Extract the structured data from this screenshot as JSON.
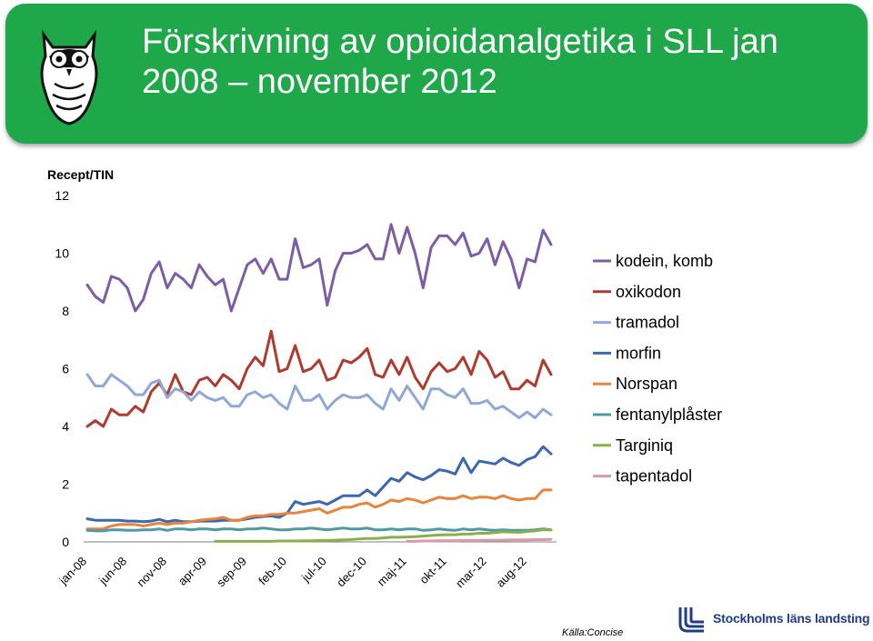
{
  "slide": {
    "title": "Förskrivning av opioidanalgetika i SLL jan 2008 – november 2012",
    "title_line1": "Förskrivning av opioidanalgetika i SLL jan",
    "title_line2": "2008 – november 2012",
    "source": "Källa:Concise",
    "org_logo_text": "Stockholms läns landsting",
    "banner_color": "#1fa84a"
  },
  "chart_data": {
    "type": "line",
    "title": "",
    "ylabel": "Recept/TIN",
    "xlabel": "",
    "ylim": [
      0,
      12
    ],
    "yticks": [
      0,
      2,
      4,
      6,
      8,
      10,
      12
    ],
    "grid": false,
    "legend_position": "right",
    "x_start": "jan-08",
    "x_tick_labels": [
      "jan-08",
      "jun-08",
      "nov-08",
      "apr-09",
      "sep-09",
      "feb-10",
      "jul-10",
      "dec-10",
      "maj-11",
      "okt-11",
      "mar-12",
      "aug-12"
    ],
    "series": [
      {
        "name": "kodein, komb",
        "color": "#7b5ea7",
        "values": [
          8.9,
          8.5,
          8.3,
          9.2,
          9.1,
          8.8,
          8.0,
          8.4,
          9.3,
          9.7,
          8.8,
          9.3,
          9.1,
          8.8,
          9.6,
          9.2,
          8.9,
          9.1,
          8.0,
          8.8,
          9.6,
          9.8,
          9.3,
          9.8,
          9.1,
          9.1,
          10.5,
          9.5,
          9.6,
          9.8,
          8.2,
          9.4,
          10.0,
          10.0,
          10.1,
          10.3,
          9.8,
          9.8,
          11.0,
          10.0,
          10.9,
          10.0,
          8.8,
          10.2,
          10.6,
          10.6,
          10.3,
          10.7,
          9.9,
          10.0,
          10.5,
          9.6,
          10.4,
          9.8,
          8.8,
          9.8,
          9.7,
          10.8,
          10.3
        ]
      },
      {
        "name": "oxikodon",
        "color": "#b03a2e",
        "values": [
          4.0,
          4.2,
          4.0,
          4.6,
          4.4,
          4.4,
          4.7,
          4.5,
          5.2,
          5.5,
          5.1,
          5.8,
          5.2,
          5.1,
          5.6,
          5.7,
          5.4,
          5.8,
          5.6,
          5.3,
          6.0,
          6.4,
          6.1,
          7.3,
          5.9,
          6.0,
          6.8,
          5.9,
          6.0,
          6.3,
          5.6,
          5.7,
          6.3,
          6.2,
          6.4,
          6.7,
          5.8,
          5.7,
          6.3,
          5.8,
          6.4,
          5.7,
          5.3,
          5.9,
          6.2,
          5.9,
          6.0,
          6.4,
          5.8,
          6.6,
          6.3,
          5.7,
          5.9,
          5.3,
          5.3,
          5.6,
          5.4,
          6.3,
          5.8
        ]
      },
      {
        "name": "tramadol",
        "color": "#8fa8d8",
        "values": [
          5.8,
          5.4,
          5.4,
          5.8,
          5.6,
          5.4,
          5.1,
          5.1,
          5.5,
          5.6,
          5.0,
          5.3,
          5.2,
          4.9,
          5.2,
          5.0,
          4.9,
          5.0,
          4.7,
          4.7,
          5.1,
          5.2,
          5.0,
          5.1,
          4.8,
          4.6,
          5.4,
          4.9,
          4.9,
          5.1,
          4.6,
          4.9,
          5.1,
          5.0,
          5.0,
          5.1,
          4.8,
          4.6,
          5.3,
          4.9,
          5.4,
          5.0,
          4.6,
          5.3,
          5.3,
          5.1,
          5.0,
          5.3,
          4.8,
          4.8,
          4.9,
          4.6,
          4.7,
          4.5,
          4.3,
          4.5,
          4.3,
          4.6,
          4.4
        ]
      },
      {
        "name": "morfin",
        "color": "#3b68b0",
        "values": [
          0.8,
          0.75,
          0.75,
          0.75,
          0.75,
          0.72,
          0.72,
          0.7,
          0.72,
          0.78,
          0.7,
          0.75,
          0.7,
          0.7,
          0.72,
          0.72,
          0.72,
          0.75,
          0.75,
          0.75,
          0.8,
          0.85,
          0.88,
          0.9,
          0.85,
          1.0,
          1.4,
          1.3,
          1.35,
          1.4,
          1.3,
          1.45,
          1.6,
          1.6,
          1.6,
          1.8,
          1.6,
          1.9,
          2.2,
          2.1,
          2.4,
          2.25,
          2.15,
          2.3,
          2.5,
          2.45,
          2.35,
          2.9,
          2.4,
          2.8,
          2.75,
          2.7,
          2.9,
          2.75,
          2.65,
          2.85,
          2.95,
          3.3,
          3.05
        ]
      },
      {
        "name": "Norspan",
        "color": "#e8843c",
        "values": [
          0.45,
          0.45,
          0.45,
          0.55,
          0.6,
          0.6,
          0.6,
          0.55,
          0.6,
          0.65,
          0.6,
          0.65,
          0.65,
          0.7,
          0.75,
          0.78,
          0.8,
          0.85,
          0.75,
          0.75,
          0.85,
          0.9,
          0.9,
          0.95,
          0.95,
          1.0,
          1.0,
          1.05,
          1.1,
          1.15,
          1.0,
          1.1,
          1.2,
          1.2,
          1.3,
          1.35,
          1.2,
          1.3,
          1.45,
          1.4,
          1.5,
          1.45,
          1.35,
          1.45,
          1.55,
          1.5,
          1.5,
          1.6,
          1.5,
          1.55,
          1.55,
          1.5,
          1.6,
          1.5,
          1.45,
          1.5,
          1.5,
          1.8,
          1.8
        ]
      },
      {
        "name": "fentanylplåster",
        "color": "#4f98a8",
        "values": [
          0.4,
          0.38,
          0.38,
          0.42,
          0.42,
          0.4,
          0.4,
          0.42,
          0.42,
          0.45,
          0.4,
          0.45,
          0.45,
          0.42,
          0.45,
          0.45,
          0.42,
          0.45,
          0.45,
          0.42,
          0.45,
          0.45,
          0.48,
          0.45,
          0.42,
          0.42,
          0.45,
          0.45,
          0.48,
          0.45,
          0.42,
          0.45,
          0.48,
          0.45,
          0.45,
          0.48,
          0.42,
          0.42,
          0.45,
          0.42,
          0.45,
          0.45,
          0.4,
          0.42,
          0.45,
          0.42,
          0.4,
          0.45,
          0.42,
          0.45,
          0.42,
          0.4,
          0.42,
          0.4,
          0.4,
          0.4,
          0.42,
          0.45,
          0.42
        ]
      },
      {
        "name": "Targiniq",
        "color": "#8ab04a",
        "values": [
          null,
          null,
          null,
          null,
          null,
          null,
          null,
          null,
          null,
          null,
          null,
          null,
          null,
          null,
          null,
          null,
          0.02,
          0.02,
          0.02,
          0.02,
          0.02,
          0.02,
          0.02,
          0.02,
          0.03,
          0.03,
          0.03,
          0.04,
          0.04,
          0.05,
          0.05,
          0.06,
          0.07,
          0.08,
          0.1,
          0.12,
          0.12,
          0.14,
          0.16,
          0.16,
          0.17,
          0.18,
          0.2,
          0.22,
          0.24,
          0.25,
          0.25,
          0.27,
          0.27,
          0.3,
          0.3,
          0.32,
          0.35,
          0.34,
          0.33,
          0.36,
          0.38,
          0.42,
          0.42
        ]
      },
      {
        "name": "tapentadol",
        "color": "#d89aa8",
        "values": [
          null,
          null,
          null,
          null,
          null,
          null,
          null,
          null,
          null,
          null,
          null,
          null,
          null,
          null,
          null,
          null,
          null,
          null,
          null,
          null,
          null,
          null,
          null,
          null,
          null,
          null,
          null,
          null,
          null,
          null,
          null,
          null,
          null,
          null,
          null,
          null,
          null,
          null,
          null,
          null,
          0.02,
          0.02,
          0.03,
          0.03,
          0.04,
          0.04,
          0.04,
          0.05,
          0.05,
          0.05,
          0.06,
          0.06,
          0.06,
          0.07,
          0.07,
          0.07,
          0.08,
          0.08,
          0.09
        ]
      }
    ]
  }
}
